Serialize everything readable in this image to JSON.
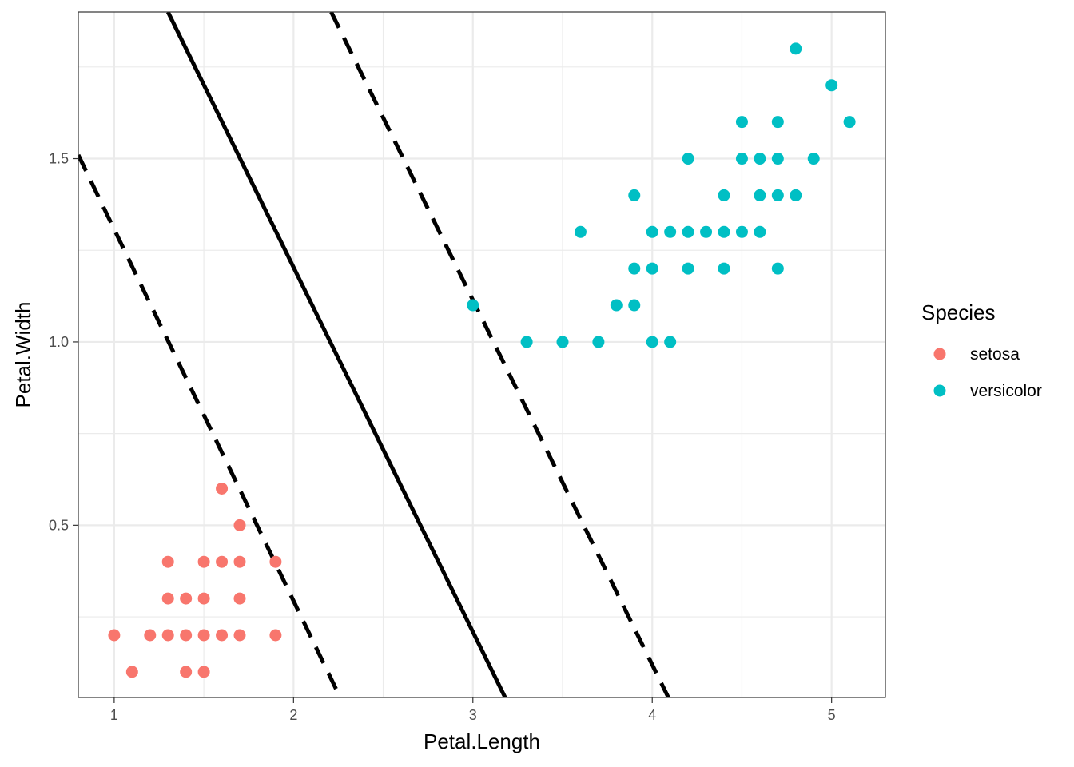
{
  "chart_data": {
    "type": "scatter",
    "xlabel": "Petal.Length",
    "ylabel": "Petal.Width",
    "xlim": [
      0.8,
      5.3
    ],
    "ylim": [
      0.03,
      1.9
    ],
    "x_ticks": [
      1,
      2,
      3,
      4,
      5
    ],
    "x_tick_labels": [
      "1",
      "2",
      "3",
      "4",
      "5"
    ],
    "y_ticks": [
      0.5,
      1.0,
      1.5
    ],
    "y_tick_labels": [
      "0.5",
      "1.0",
      "1.5"
    ],
    "grid": true,
    "legend": {
      "title": "Species",
      "position": "right"
    },
    "series": [
      {
        "name": "setosa",
        "color": "#F8766D",
        "points": [
          [
            1.0,
            0.2
          ],
          [
            1.1,
            0.1
          ],
          [
            1.2,
            0.2
          ],
          [
            1.3,
            0.2
          ],
          [
            1.3,
            0.3
          ],
          [
            1.3,
            0.4
          ],
          [
            1.4,
            0.1
          ],
          [
            1.4,
            0.2
          ],
          [
            1.4,
            0.3
          ],
          [
            1.5,
            0.1
          ],
          [
            1.5,
            0.2
          ],
          [
            1.5,
            0.3
          ],
          [
            1.5,
            0.4
          ],
          [
            1.6,
            0.2
          ],
          [
            1.6,
            0.4
          ],
          [
            1.6,
            0.6
          ],
          [
            1.7,
            0.2
          ],
          [
            1.7,
            0.3
          ],
          [
            1.7,
            0.4
          ],
          [
            1.7,
            0.5
          ],
          [
            1.9,
            0.2
          ],
          [
            1.9,
            0.4
          ]
        ]
      },
      {
        "name": "versicolor",
        "color": "#00BFC4",
        "points": [
          [
            3.0,
            1.1
          ],
          [
            3.3,
            1.0
          ],
          [
            3.5,
            1.0
          ],
          [
            3.6,
            1.3
          ],
          [
            3.7,
            1.0
          ],
          [
            3.8,
            1.1
          ],
          [
            3.9,
            1.1
          ],
          [
            3.9,
            1.2
          ],
          [
            3.9,
            1.4
          ],
          [
            4.0,
            1.0
          ],
          [
            4.0,
            1.2
          ],
          [
            4.0,
            1.3
          ],
          [
            4.1,
            1.0
          ],
          [
            4.1,
            1.3
          ],
          [
            4.2,
            1.2
          ],
          [
            4.2,
            1.3
          ],
          [
            4.2,
            1.5
          ],
          [
            4.3,
            1.3
          ],
          [
            4.4,
            1.2
          ],
          [
            4.4,
            1.3
          ],
          [
            4.4,
            1.4
          ],
          [
            4.5,
            1.3
          ],
          [
            4.5,
            1.5
          ],
          [
            4.5,
            1.6
          ],
          [
            4.6,
            1.3
          ],
          [
            4.6,
            1.4
          ],
          [
            4.6,
            1.5
          ],
          [
            4.7,
            1.2
          ],
          [
            4.7,
            1.4
          ],
          [
            4.7,
            1.5
          ],
          [
            4.7,
            1.6
          ],
          [
            4.8,
            1.4
          ],
          [
            4.8,
            1.8
          ],
          [
            4.9,
            1.5
          ],
          [
            5.0,
            1.7
          ],
          [
            5.1,
            1.6
          ]
        ]
      }
    ],
    "lines": [
      {
        "style": "solid",
        "color": "#000000",
        "p1": [
          1.3,
          1.9
        ],
        "p2": [
          3.18,
          0.03
        ]
      },
      {
        "style": "dashed",
        "color": "#000000",
        "p1": [
          0.8,
          1.51
        ],
        "p2": [
          2.26,
          0.03
        ]
      },
      {
        "style": "dashed",
        "color": "#000000",
        "p1": [
          2.21,
          1.9
        ],
        "p2": [
          4.09,
          0.03
        ]
      }
    ]
  }
}
